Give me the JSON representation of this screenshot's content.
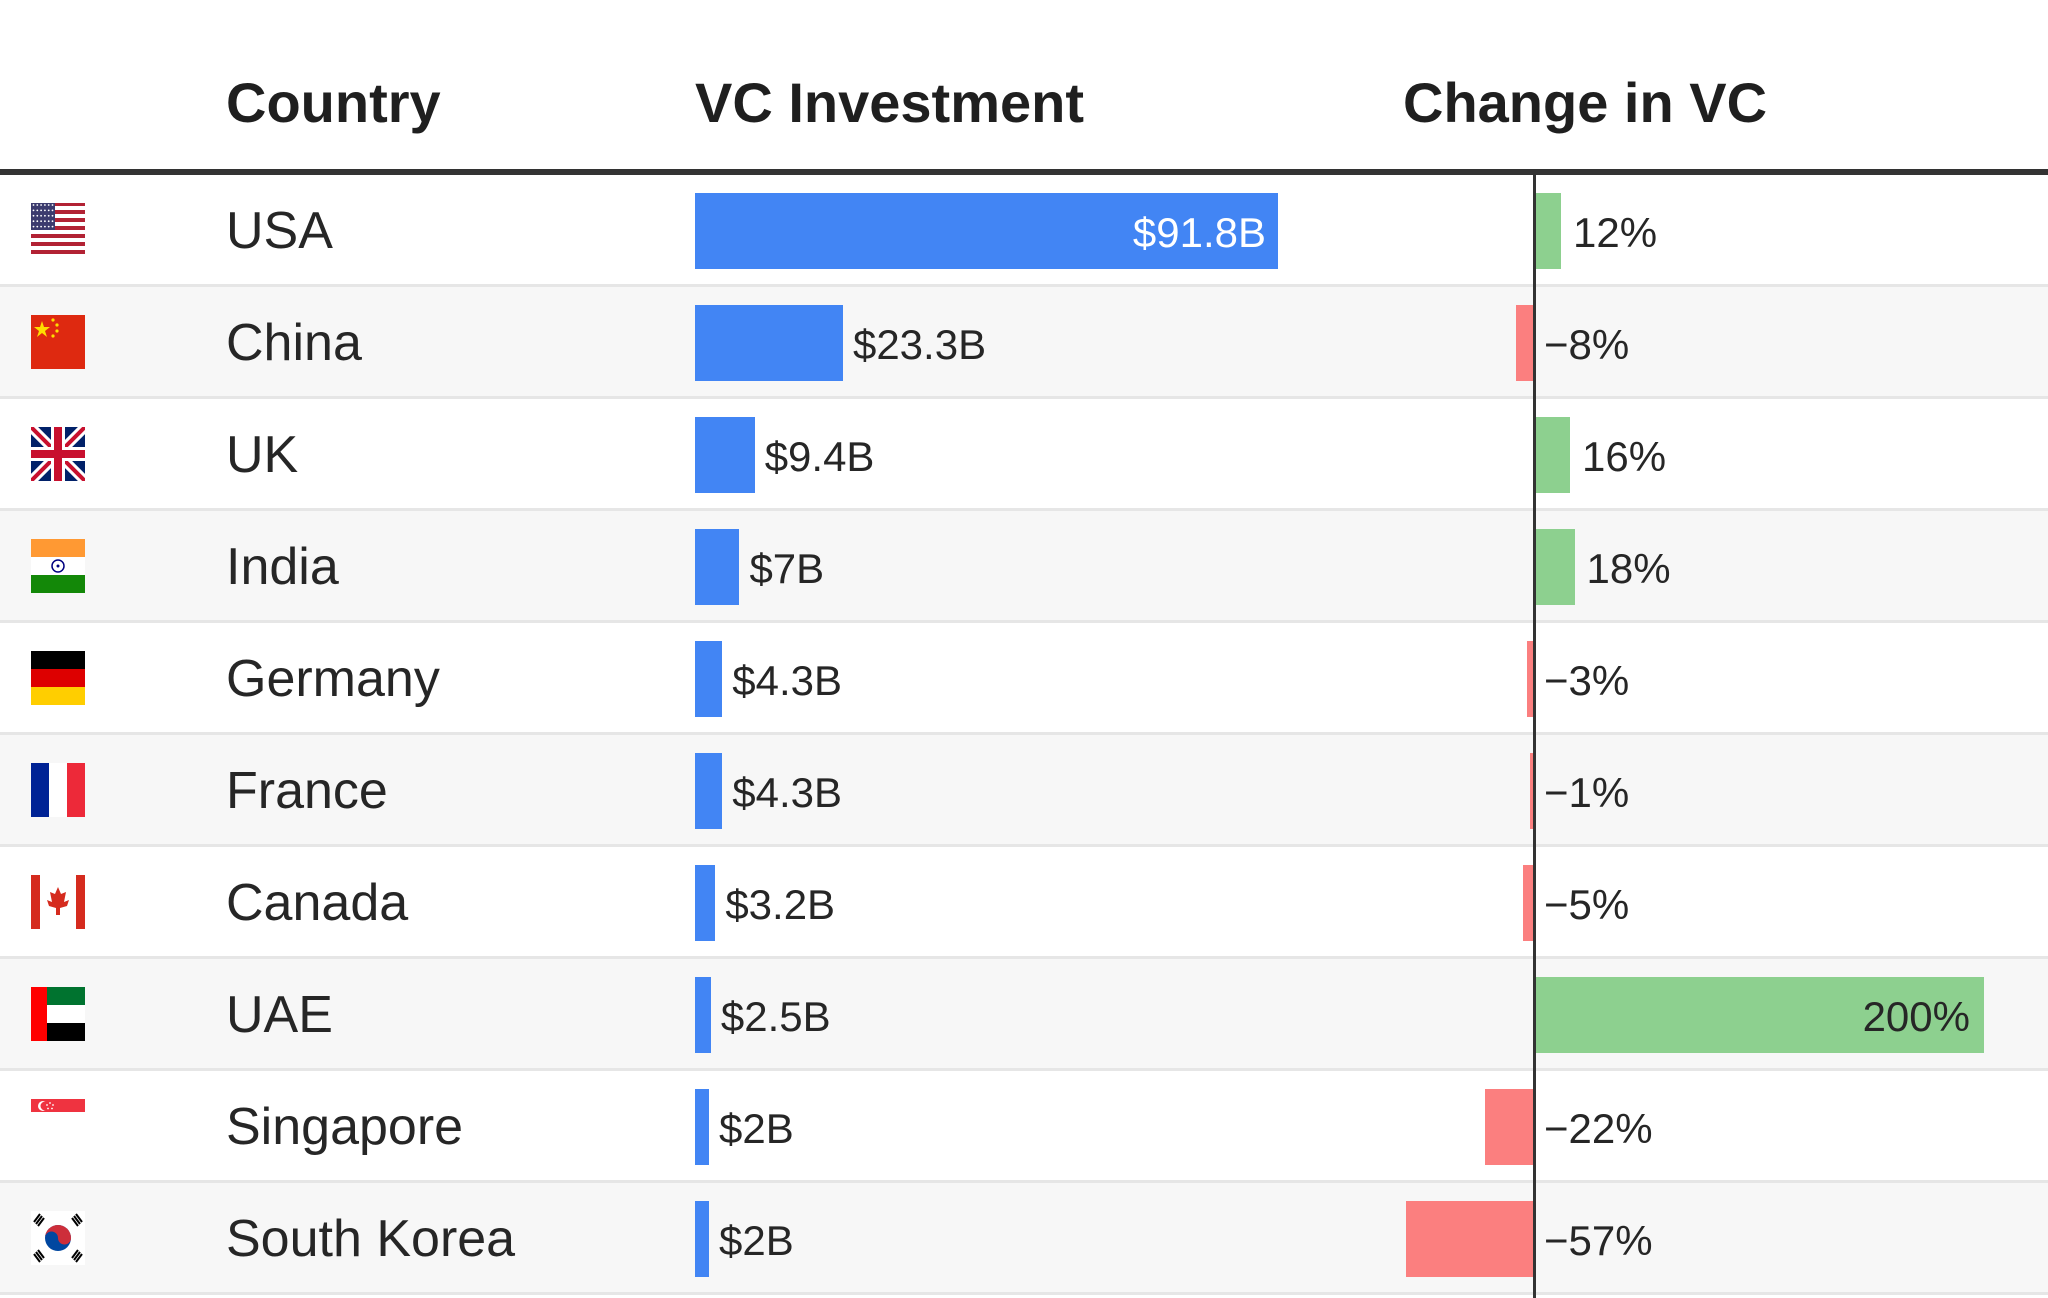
{
  "headers": {
    "country": "Country",
    "vc_investment": "VC Investment",
    "change": "Change in VC"
  },
  "colors": {
    "vc_bar": "#4285f4",
    "positive": "#8dd08f",
    "negative": "#fb7f7f",
    "row_alt": "#f7f7f7",
    "axis": "#333333"
  },
  "chart_data": {
    "type": "table",
    "columns": [
      "Country",
      "VC Investment",
      "Change in VC"
    ],
    "rows": [
      {
        "country": "USA",
        "flag": "usa-flag-icon",
        "vc_value": 91.8,
        "vc_label": "$91.8B",
        "change": 12,
        "change_label": "12%"
      },
      {
        "country": "China",
        "flag": "china-flag-icon",
        "vc_value": 23.3,
        "vc_label": "$23.3B",
        "change": -8,
        "change_label": "−8%"
      },
      {
        "country": "UK",
        "flag": "uk-flag-icon",
        "vc_value": 9.4,
        "vc_label": "$9.4B",
        "change": 16,
        "change_label": "16%"
      },
      {
        "country": "India",
        "flag": "india-flag-icon",
        "vc_value": 7,
        "vc_label": "$7B",
        "change": 18,
        "change_label": "18%"
      },
      {
        "country": "Germany",
        "flag": "germany-flag-icon",
        "vc_value": 4.3,
        "vc_label": "$4.3B",
        "change": -3,
        "change_label": "−3%"
      },
      {
        "country": "France",
        "flag": "france-flag-icon",
        "vc_value": 4.3,
        "vc_label": "$4.3B",
        "change": -1,
        "change_label": "−1%"
      },
      {
        "country": "Canada",
        "flag": "canada-flag-icon",
        "vc_value": 3.2,
        "vc_label": "$3.2B",
        "change": -5,
        "change_label": "−5%"
      },
      {
        "country": "UAE",
        "flag": "uae-flag-icon",
        "vc_value": 2.5,
        "vc_label": "$2.5B",
        "change": 200,
        "change_label": "200%"
      },
      {
        "country": "Singapore",
        "flag": "singapore-flag-icon",
        "vc_value": 2,
        "vc_label": "$2B",
        "change": -22,
        "change_label": "−22%"
      },
      {
        "country": "South Korea",
        "flag": "south-korea-flag-icon",
        "vc_value": 2,
        "vc_label": "$2B",
        "change": -57,
        "change_label": "−57%"
      }
    ]
  }
}
